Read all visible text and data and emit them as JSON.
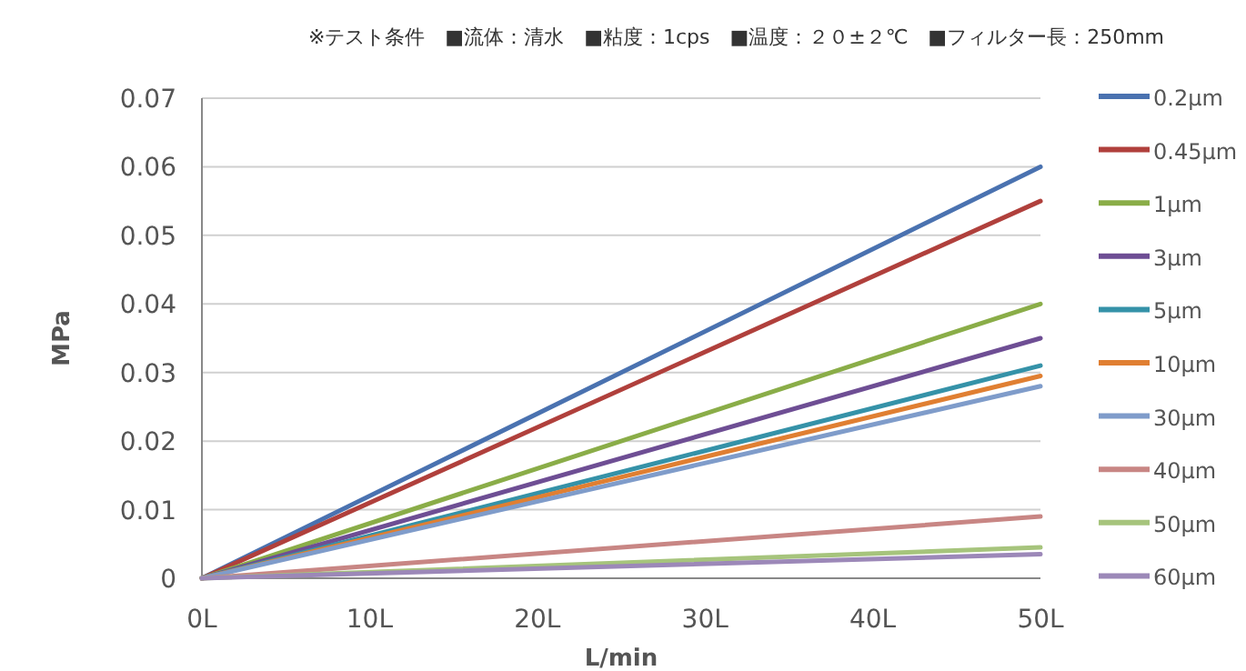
{
  "chart_data": {
    "type": "line",
    "annotations": [
      "※テスト条件　■流体：清水　■粘度：1cps　■温度：２０±２℃　■フィルター長：250mm"
    ],
    "xlabel": "L/min",
    "ylabel": "MPa",
    "xlim": [
      0,
      50
    ],
    "xticks": [
      {
        "value": 0,
        "label": "0L"
      },
      {
        "value": 10,
        "label": "10L"
      },
      {
        "value": 20,
        "label": "20L"
      },
      {
        "value": 30,
        "label": "30L"
      },
      {
        "value": 40,
        "label": "40L"
      },
      {
        "value": 50,
        "label": "50L"
      }
    ],
    "ylim": [
      0,
      0.07
    ],
    "yticks": [
      0,
      0.01,
      0.02,
      0.03,
      0.04,
      0.05,
      0.06,
      0.07
    ],
    "grid": "y",
    "legend": "right",
    "x": [
      0,
      50
    ],
    "series": [
      {
        "name": "0.2μm",
        "color": "#4a72b0",
        "values": [
          0,
          0.06
        ]
      },
      {
        "name": "0.45μm",
        "color": "#b0403c",
        "values": [
          0,
          0.055
        ]
      },
      {
        "name": "1μm",
        "color": "#8aad48",
        "values": [
          0,
          0.04
        ]
      },
      {
        "name": "3μm",
        "color": "#6e4e94",
        "values": [
          0,
          0.035
        ]
      },
      {
        "name": "5μm",
        "color": "#3592a8",
        "values": [
          0,
          0.031
        ]
      },
      {
        "name": "10μm",
        "color": "#e07f32",
        "values": [
          0,
          0.0295
        ]
      },
      {
        "name": "30μm",
        "color": "#7f9cca",
        "values": [
          0,
          0.028
        ]
      },
      {
        "name": "40μm",
        "color": "#c88684",
        "values": [
          0,
          0.009
        ]
      },
      {
        "name": "50μm",
        "color": "#a6c47c",
        "values": [
          0,
          0.0045
        ]
      },
      {
        "name": "60μm",
        "color": "#9c88b8",
        "values": [
          0,
          0.0035
        ]
      }
    ]
  }
}
